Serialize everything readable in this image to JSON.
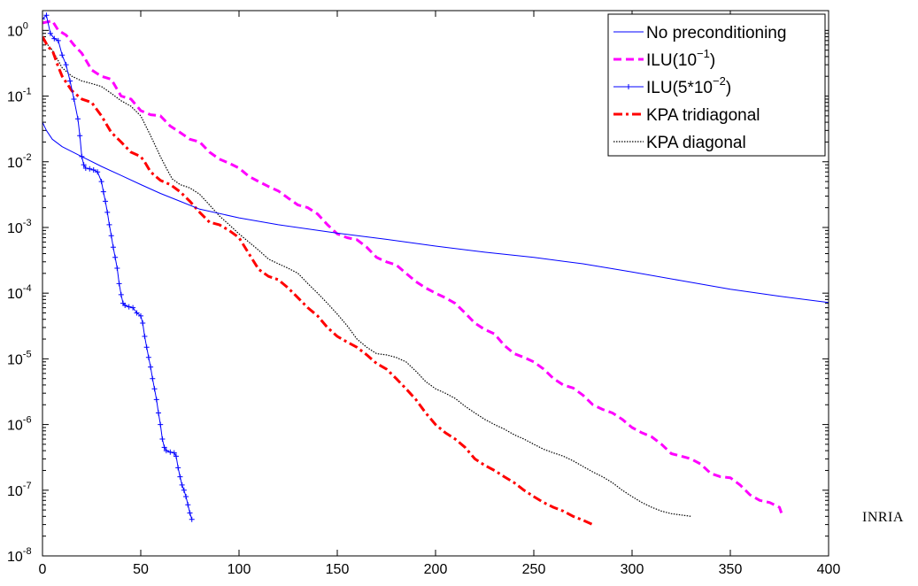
{
  "side_label": "INRIA",
  "chart_data": {
    "type": "line",
    "title": "",
    "xlabel": "",
    "ylabel": "",
    "xlim": [
      0,
      400
    ],
    "ylim": [
      1e-08,
      2
    ],
    "yscale": "log",
    "grid": false,
    "legend_position": "top-right",
    "x_ticks": [
      0,
      50,
      100,
      150,
      200,
      250,
      300,
      350,
      400
    ],
    "y_ticks": [
      {
        "base": "10",
        "exp": "-8",
        "value": 1e-08
      },
      {
        "base": "10",
        "exp": "-7",
        "value": 1e-07
      },
      {
        "base": "10",
        "exp": "-6",
        "value": 1e-06
      },
      {
        "base": "10",
        "exp": "-5",
        "value": 1e-05
      },
      {
        "base": "10",
        "exp": "-4",
        "value": 0.0001
      },
      {
        "base": "10",
        "exp": "-3",
        "value": 0.001
      },
      {
        "base": "10",
        "exp": "-2",
        "value": 0.01
      },
      {
        "base": "10",
        "exp": "-1",
        "value": 0.1
      },
      {
        "base": "10",
        "exp": "0",
        "value": 1
      }
    ],
    "series": [
      {
        "name": "No preconditioning",
        "color": "#0000ff",
        "style": "solid",
        "points": [
          [
            0,
            0.04
          ],
          [
            2,
            0.03
          ],
          [
            5,
            0.022
          ],
          [
            10,
            0.017
          ],
          [
            20,
            0.012
          ],
          [
            30,
            0.0085
          ],
          [
            40,
            0.0062
          ],
          [
            50,
            0.0045
          ],
          [
            60,
            0.0033
          ],
          [
            70,
            0.0025
          ],
          [
            80,
            0.0019
          ],
          [
            100,
            0.0014
          ],
          [
            120,
            0.0011
          ],
          [
            150,
            0.00082
          ],
          [
            175,
            0.00066
          ],
          [
            200,
            0.00052
          ],
          [
            225,
            0.00042
          ],
          [
            250,
            0.00035
          ],
          [
            275,
            0.00028
          ],
          [
            300,
            0.00021
          ],
          [
            325,
            0.000155
          ],
          [
            350,
            0.000115
          ],
          [
            375,
            9e-05
          ],
          [
            400,
            7.2e-05
          ]
        ]
      },
      {
        "name": "ILU(10^-1)",
        "label_base": "ILU(10",
        "label_exp": "−1",
        "label_end": ")",
        "color": "#ff00ff",
        "style": "dashed",
        "points": [
          [
            0,
            1.3
          ],
          [
            5,
            1.4
          ],
          [
            8,
            1.0
          ],
          [
            12,
            0.85
          ],
          [
            16,
            0.6
          ],
          [
            20,
            0.45
          ],
          [
            25,
            0.25
          ],
          [
            30,
            0.2
          ],
          [
            35,
            0.18
          ],
          [
            40,
            0.1
          ],
          [
            45,
            0.09
          ],
          [
            50,
            0.06
          ],
          [
            55,
            0.052
          ],
          [
            60,
            0.05
          ],
          [
            65,
            0.035
          ],
          [
            70,
            0.028
          ],
          [
            75,
            0.022
          ],
          [
            80,
            0.02
          ],
          [
            85,
            0.014
          ],
          [
            90,
            0.011
          ],
          [
            95,
            0.0095
          ],
          [
            100,
            0.008
          ],
          [
            105,
            0.006
          ],
          [
            110,
            0.005
          ],
          [
            115,
            0.0042
          ],
          [
            120,
            0.0036
          ],
          [
            125,
            0.0028
          ],
          [
            130,
            0.0022
          ],
          [
            135,
            0.002
          ],
          [
            140,
            0.0016
          ],
          [
            145,
            0.0011
          ],
          [
            150,
            0.0008
          ],
          [
            155,
            0.0007
          ],
          [
            160,
            0.00065
          ],
          [
            165,
            0.0005
          ],
          [
            170,
            0.00035
          ],
          [
            175,
            0.0003
          ],
          [
            180,
            0.00027
          ],
          [
            185,
            0.0002
          ],
          [
            190,
            0.00015
          ],
          [
            195,
            0.00012
          ],
          [
            200,
            0.0001
          ],
          [
            205,
            8.5e-05
          ],
          [
            210,
            7e-05
          ],
          [
            215,
            5e-05
          ],
          [
            220,
            3.5e-05
          ],
          [
            225,
            2.8e-05
          ],
          [
            230,
            2.4e-05
          ],
          [
            235,
            1.6e-05
          ],
          [
            240,
            1.2e-05
          ],
          [
            245,
            1.05e-05
          ],
          [
            250,
            9e-06
          ],
          [
            255,
            7e-06
          ],
          [
            260,
            5e-06
          ],
          [
            265,
            4e-06
          ],
          [
            270,
            3.6e-06
          ],
          [
            275,
            2.8e-06
          ],
          [
            280,
            2e-06
          ],
          [
            285,
            1.7e-06
          ],
          [
            290,
            1.5e-06
          ],
          [
            295,
            1.2e-06
          ],
          [
            300,
            9e-07
          ],
          [
            305,
            7.5e-07
          ],
          [
            310,
            6.5e-07
          ],
          [
            315,
            5e-07
          ],
          [
            320,
            3.6e-07
          ],
          [
            325,
            3.3e-07
          ],
          [
            330,
            3e-07
          ],
          [
            335,
            2.5e-07
          ],
          [
            340,
            1.8e-07
          ],
          [
            345,
            1.6e-07
          ],
          [
            350,
            1.55e-07
          ],
          [
            355,
            1.2e-07
          ],
          [
            360,
            8.5e-08
          ],
          [
            365,
            7e-08
          ],
          [
            370,
            6.5e-08
          ],
          [
            375,
            5.5e-08
          ],
          [
            376,
            4.5e-08
          ]
        ]
      },
      {
        "name": "ILU(5*10^-2)",
        "label_base": "ILU(5*10",
        "label_exp": "−2",
        "label_end": ")",
        "color": "#0000ff",
        "style": "solid-plus",
        "points": [
          [
            0,
            1.5
          ],
          [
            2,
            1.7
          ],
          [
            4,
            0.9
          ],
          [
            6,
            0.75
          ],
          [
            8,
            0.7
          ],
          [
            10,
            0.42
          ],
          [
            12,
            0.3
          ],
          [
            14,
            0.17
          ],
          [
            16,
            0.09
          ],
          [
            18,
            0.045
          ],
          [
            19,
            0.025
          ],
          [
            20,
            0.012
          ],
          [
            21,
            0.009
          ],
          [
            22,
            0.008
          ],
          [
            24,
            0.0078
          ],
          [
            26,
            0.0075
          ],
          [
            28,
            0.007
          ],
          [
            30,
            0.005
          ],
          [
            31,
            0.0035
          ],
          [
            32,
            0.0025
          ],
          [
            33,
            0.0017
          ],
          [
            34,
            0.0011
          ],
          [
            35,
            0.00075
          ],
          [
            36,
            0.0005
          ],
          [
            37,
            0.00035
          ],
          [
            38,
            0.00024
          ],
          [
            39,
            0.00014
          ],
          [
            40,
            9.5e-05
          ],
          [
            41,
            7e-05
          ],
          [
            42,
            6.5e-05
          ],
          [
            44,
            6.2e-05
          ],
          [
            46,
            6e-05
          ],
          [
            48,
            5e-05
          ],
          [
            50,
            4.5e-05
          ],
          [
            51,
            3.5e-05
          ],
          [
            52,
            2.2e-05
          ],
          [
            53,
            1.5e-05
          ],
          [
            54,
            1.05e-05
          ],
          [
            55,
            7.5e-06
          ],
          [
            56,
            5e-06
          ],
          [
            57,
            3.5e-06
          ],
          [
            58,
            2.4e-06
          ],
          [
            59,
            1.5e-06
          ],
          [
            60,
            1e-06
          ],
          [
            61,
            6e-07
          ],
          [
            62,
            4.5e-07
          ],
          [
            63,
            4e-07
          ],
          [
            65,
            3.8e-07
          ],
          [
            67,
            3.7e-07
          ],
          [
            68,
            3.3e-07
          ],
          [
            69,
            2.2e-07
          ],
          [
            70,
            1.6e-07
          ],
          [
            71,
            1.2e-07
          ],
          [
            72,
            1e-07
          ],
          [
            73,
            8e-08
          ],
          [
            74,
            6e-08
          ],
          [
            75,
            4.5e-08
          ],
          [
            76,
            3.6e-08
          ]
        ]
      },
      {
        "name": "KPA tridiagonal",
        "color": "#ff0000",
        "style": "dashdot",
        "points": [
          [
            0,
            0.8
          ],
          [
            3,
            0.55
          ],
          [
            5,
            0.5
          ],
          [
            8,
            0.28
          ],
          [
            10,
            0.2
          ],
          [
            15,
            0.12
          ],
          [
            20,
            0.09
          ],
          [
            25,
            0.08
          ],
          [
            30,
            0.05
          ],
          [
            35,
            0.028
          ],
          [
            40,
            0.02
          ],
          [
            45,
            0.014
          ],
          [
            50,
            0.012
          ],
          [
            52,
            0.01
          ],
          [
            55,
            0.007
          ],
          [
            60,
            0.0052
          ],
          [
            65,
            0.0045
          ],
          [
            70,
            0.0035
          ],
          [
            75,
            0.0025
          ],
          [
            80,
            0.0017
          ],
          [
            85,
            0.0012
          ],
          [
            90,
            0.0011
          ],
          [
            95,
            0.0009
          ],
          [
            100,
            0.0007
          ],
          [
            105,
            0.0004
          ],
          [
            110,
            0.00023
          ],
          [
            115,
            0.00018
          ],
          [
            120,
            0.00016
          ],
          [
            125,
            0.00012
          ],
          [
            130,
            8.5e-05
          ],
          [
            135,
            6e-05
          ],
          [
            140,
            4.5e-05
          ],
          [
            145,
            3e-05
          ],
          [
            150,
            2.2e-05
          ],
          [
            155,
            1.8e-05
          ],
          [
            160,
            1.5e-05
          ],
          [
            165,
            1.15e-05
          ],
          [
            170,
            8.5e-06
          ],
          [
            175,
            7e-06
          ],
          [
            180,
            5e-06
          ],
          [
            185,
            3.5e-06
          ],
          [
            190,
            2.4e-06
          ],
          [
            195,
            1.5e-06
          ],
          [
            200,
            1e-06
          ],
          [
            205,
            7.5e-07
          ],
          [
            210,
            6e-07
          ],
          [
            215,
            4.5e-07
          ],
          [
            220,
            3e-07
          ],
          [
            225,
            2.4e-07
          ],
          [
            230,
            2e-07
          ],
          [
            235,
            1.6e-07
          ],
          [
            240,
            1.3e-07
          ],
          [
            245,
            1e-07
          ],
          [
            250,
            8e-08
          ],
          [
            255,
            6.5e-08
          ],
          [
            260,
            5.5e-08
          ],
          [
            265,
            4.8e-08
          ],
          [
            270,
            4e-08
          ],
          [
            275,
            3.5e-08
          ],
          [
            280,
            3e-08
          ]
        ]
      },
      {
        "name": "KPA diagonal",
        "color": "#000000",
        "style": "dotted",
        "points": [
          [
            0,
            0.75
          ],
          [
            5,
            0.5
          ],
          [
            10,
            0.27
          ],
          [
            15,
            0.2
          ],
          [
            20,
            0.17
          ],
          [
            25,
            0.155
          ],
          [
            30,
            0.14
          ],
          [
            35,
            0.11
          ],
          [
            40,
            0.085
          ],
          [
            45,
            0.07
          ],
          [
            50,
            0.05
          ],
          [
            55,
            0.025
          ],
          [
            60,
            0.012
          ],
          [
            63,
            0.008
          ],
          [
            66,
            0.0055
          ],
          [
            70,
            0.0045
          ],
          [
            75,
            0.004
          ],
          [
            80,
            0.0032
          ],
          [
            85,
            0.0022
          ],
          [
            90,
            0.0015
          ],
          [
            95,
            0.0011
          ],
          [
            100,
            0.0008
          ],
          [
            105,
            0.0006
          ],
          [
            110,
            0.00045
          ],
          [
            115,
            0.00033
          ],
          [
            120,
            0.00028
          ],
          [
            125,
            0.00024
          ],
          [
            130,
            0.0002
          ],
          [
            135,
            0.00014
          ],
          [
            140,
            0.0001
          ],
          [
            145,
            7e-05
          ],
          [
            150,
            4.8e-05
          ],
          [
            155,
            3.2e-05
          ],
          [
            160,
            2e-05
          ],
          [
            165,
            1.5e-05
          ],
          [
            170,
            1.2e-05
          ],
          [
            175,
            1.15e-05
          ],
          [
            180,
            1.05e-05
          ],
          [
            185,
            9e-06
          ],
          [
            190,
            6.5e-06
          ],
          [
            195,
            4.5e-06
          ],
          [
            200,
            3.5e-06
          ],
          [
            205,
            3e-06
          ],
          [
            210,
            2.5e-06
          ],
          [
            215,
            1.9e-06
          ],
          [
            220,
            1.5e-06
          ],
          [
            225,
            1.2e-06
          ],
          [
            230,
            1e-06
          ],
          [
            235,
            8.5e-07
          ],
          [
            240,
            7e-07
          ],
          [
            245,
            6e-07
          ],
          [
            250,
            5e-07
          ],
          [
            255,
            4.2e-07
          ],
          [
            260,
            3.7e-07
          ],
          [
            265,
            3.3e-07
          ],
          [
            270,
            2.8e-07
          ],
          [
            275,
            2.3e-07
          ],
          [
            280,
            1.9e-07
          ],
          [
            285,
            1.6e-07
          ],
          [
            290,
            1.3e-07
          ],
          [
            295,
            1e-07
          ],
          [
            300,
            8e-08
          ],
          [
            305,
            6.5e-08
          ],
          [
            310,
            5.5e-08
          ],
          [
            315,
            4.8e-08
          ],
          [
            320,
            4.4e-08
          ],
          [
            325,
            4.2e-08
          ],
          [
            330,
            4e-08
          ]
        ]
      }
    ]
  }
}
